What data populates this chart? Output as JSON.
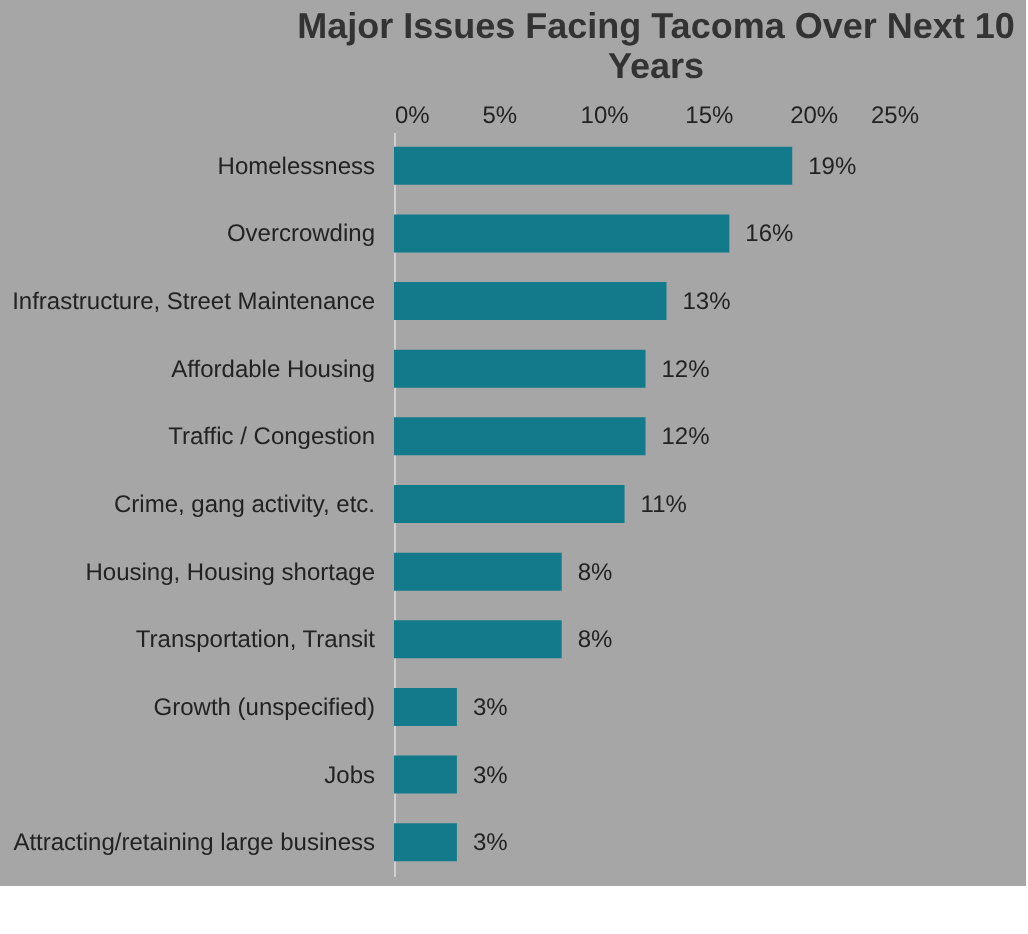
{
  "chart_data": {
    "type": "bar",
    "orientation": "horizontal",
    "title": "Major Issues Facing Tacoma Over Next 10 Years",
    "categories": [
      "Homelessness",
      "Overcrowding",
      "Infrastructure, Street Maintenance",
      "Affordable Housing",
      "Traffic / Congestion",
      "Crime, gang activity, etc.",
      "Housing, Housing shortage",
      "Transportation, Transit",
      "Growth (unspecified)",
      "Jobs",
      "Attracting/retaining large business"
    ],
    "values": [
      19,
      16,
      13,
      12,
      12,
      11,
      8,
      8,
      3,
      3,
      3
    ],
    "value_labels": [
      "19%",
      "16%",
      "13%",
      "12%",
      "12%",
      "11%",
      "8%",
      "8%",
      "3%",
      "3%",
      "3%"
    ],
    "color": "#127a8a",
    "xlim": [
      0,
      25
    ],
    "xticks": [
      {
        "value": 0,
        "label": "0%"
      },
      {
        "value": 5,
        "label": "5%"
      },
      {
        "value": 10,
        "label": "10%"
      },
      {
        "value": 15,
        "label": "15%"
      },
      {
        "value": 20,
        "label": "20%"
      },
      {
        "value": 25,
        "label": "25%"
      }
    ],
    "grid": false
  }
}
